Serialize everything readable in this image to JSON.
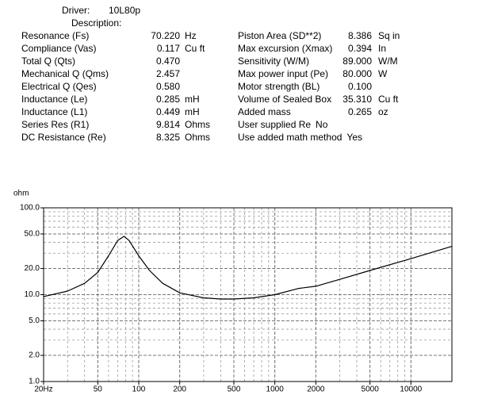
{
  "header": {
    "driver_label": "Driver:",
    "driver": "10L80p",
    "description_label": "Description:"
  },
  "left_params": [
    {
      "label": "Resonance (Fs)",
      "value": "70.220",
      "unit": "Hz"
    },
    {
      "label": "Compliance (Vas)",
      "value": "0.117",
      "unit": "Cu ft"
    },
    {
      "label": "Total Q (Qts)",
      "value": "0.470"
    },
    {
      "label": "Mechanical Q (Qms)",
      "value": "2.457"
    },
    {
      "label": "Electrical Q (Qes)",
      "value": "0.580"
    },
    {
      "label": "Inductance (Le)",
      "value": "0.285",
      "unit": "mH"
    },
    {
      "label": "Inductance (L1)",
      "value": "0.449",
      "unit": "mH"
    },
    {
      "label": "Series Res (R1)",
      "value": "9.814",
      "unit": "Ohms"
    },
    {
      "label": "DC Resistance (Re)",
      "value": "8.325",
      "unit": "Ohms"
    }
  ],
  "right_params": [
    {
      "label": "Piston Area (SD**2)",
      "value": "8.386",
      "unit": "Sq in"
    },
    {
      "label": "Max excursion (Xmax)",
      "value": "0.394",
      "unit": "In"
    },
    {
      "label": "Sensitivity (W/M)",
      "value": "89.000",
      "unit": "W/M"
    },
    {
      "label": "Max power input (Pe)",
      "value": "80.000",
      "unit": "W"
    },
    {
      "label": "Motor strength (BL)",
      "value": "0.100"
    },
    {
      "label": "Volume of Sealed Box",
      "value": "35.310",
      "unit": "Cu ft"
    },
    {
      "label": "Added mass",
      "value": "0.265",
      "unit": "oz"
    },
    {
      "label": "User supplied Re",
      "value": "No"
    },
    {
      "label": "Use added math method",
      "value": "Yes"
    }
  ],
  "chart_data": {
    "type": "line",
    "y_label": "ohm",
    "x": [
      20,
      30,
      40,
      50,
      60,
      70,
      78,
      85,
      100,
      120,
      150,
      200,
      300,
      400,
      500,
      700,
      1000,
      1500,
      2000,
      3000,
      5000,
      10000,
      20000
    ],
    "series": [
      {
        "color": "#000000",
        "values": [
          9.5,
          11,
          13.5,
          18,
          28,
          42,
          47,
          42,
          28,
          19,
          13.5,
          10.5,
          9.2,
          8.9,
          8.9,
          9.2,
          10,
          11.8,
          12.5,
          15,
          19,
          26,
          36
        ]
      }
    ],
    "xscale": "log",
    "yscale": "log",
    "grid": true,
    "minor_grid": true,
    "xlim": [
      20,
      20000
    ],
    "ylim": [
      1,
      100
    ],
    "xticks": [
      {
        "value": 20,
        "label": "20Hz"
      },
      50,
      100,
      200,
      500,
      1000,
      2000,
      5000,
      10000
    ],
    "yticks": [
      {
        "value": 1,
        "label": "1.0"
      },
      {
        "value": 2,
        "label": "2.0"
      },
      {
        "value": 5,
        "label": "5.0"
      },
      {
        "value": 10,
        "label": "10.0"
      },
      {
        "value": 20,
        "label": "20.0"
      },
      {
        "value": 50,
        "label": "50.0"
      },
      {
        "value": 100,
        "label": "100.0"
      }
    ]
  }
}
